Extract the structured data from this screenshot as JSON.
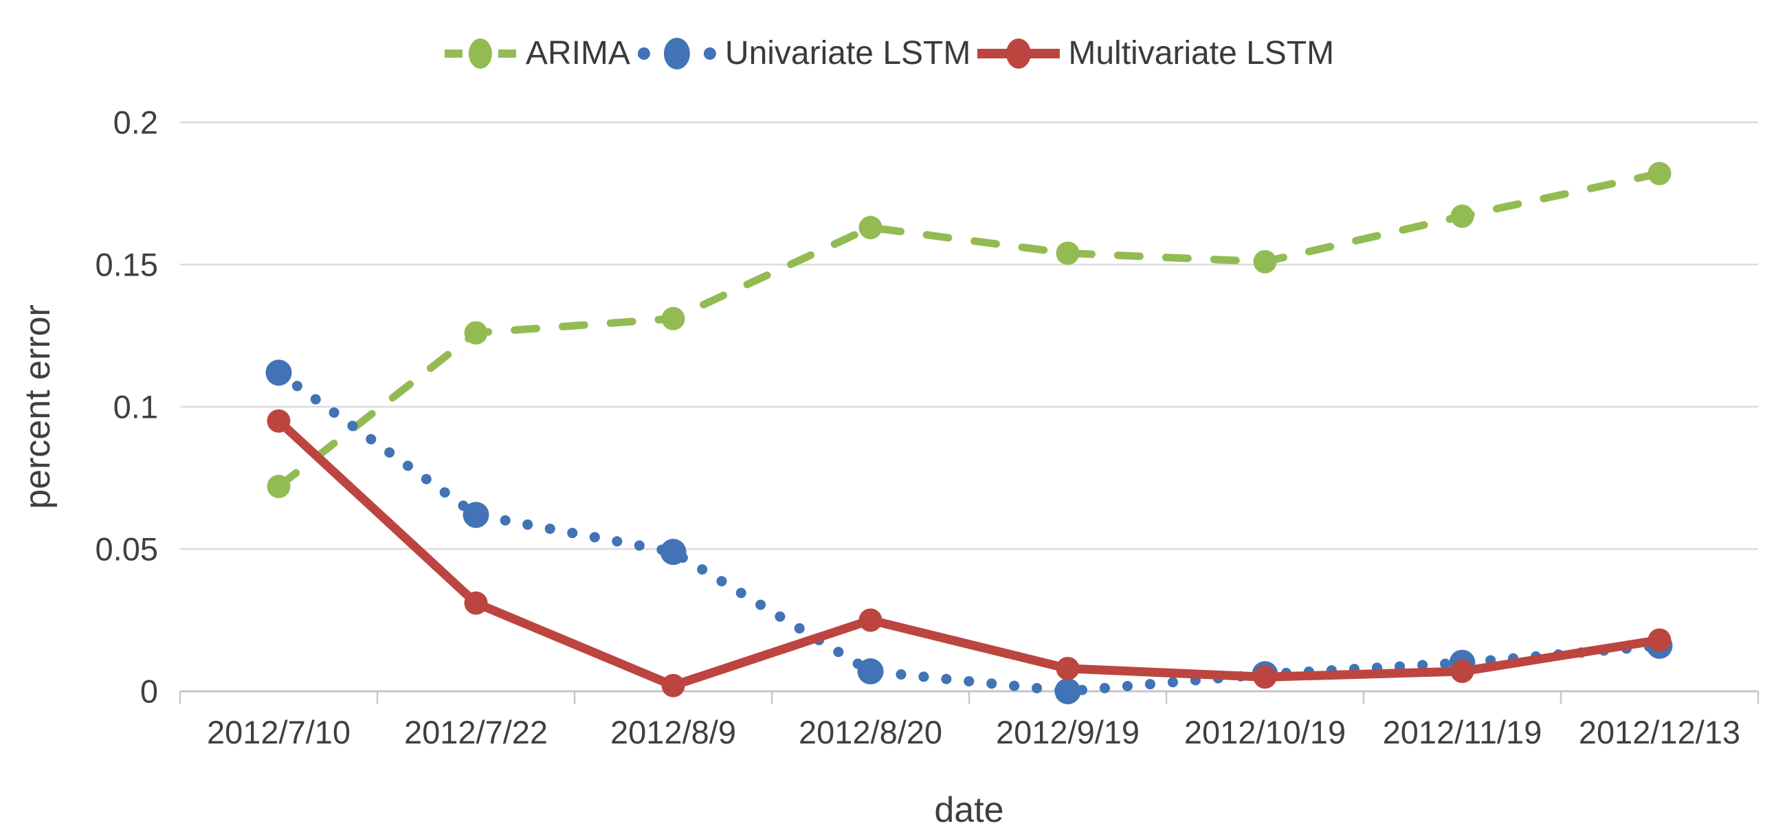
{
  "chart_data": {
    "type": "line",
    "title": "",
    "xlabel": "date",
    "ylabel": "percent error",
    "categories": [
      "2012/7/10",
      "2012/7/22",
      "2012/8/9",
      "2012/8/20",
      "2012/9/19",
      "2012/10/19",
      "2012/11/19",
      "2012/12/13"
    ],
    "series": [
      {
        "name": "ARIMA",
        "color": "#93bb53",
        "style": "dashed",
        "values": [
          0.072,
          0.126,
          0.131,
          0.163,
          0.154,
          0.151,
          0.167,
          0.182
        ]
      },
      {
        "name": "Univariate LSTM",
        "color": "#4173b6",
        "style": "dotted",
        "values": [
          0.112,
          0.062,
          0.049,
          0.007,
          0.0,
          0.006,
          0.01,
          0.016
        ]
      },
      {
        "name": "Multivariate LSTM",
        "color": "#bc4540",
        "style": "solid",
        "values": [
          0.095,
          0.031,
          0.002,
          0.025,
          0.008,
          0.005,
          0.007,
          0.018
        ]
      }
    ],
    "ylim": [
      0,
      0.2
    ],
    "yticks": [
      0,
      0.05,
      0.1,
      0.15,
      0.2
    ],
    "ytick_labels": [
      "0",
      "0.05",
      "0.1",
      "0.15",
      "0.2"
    ],
    "grid": "horizontal",
    "legend_position": "top"
  },
  "colors": {
    "gridline": "#dcdcdc",
    "axis_line": "#c6c6c6",
    "tick": "#c6c6c6",
    "label_text": "#3f3f3f"
  }
}
